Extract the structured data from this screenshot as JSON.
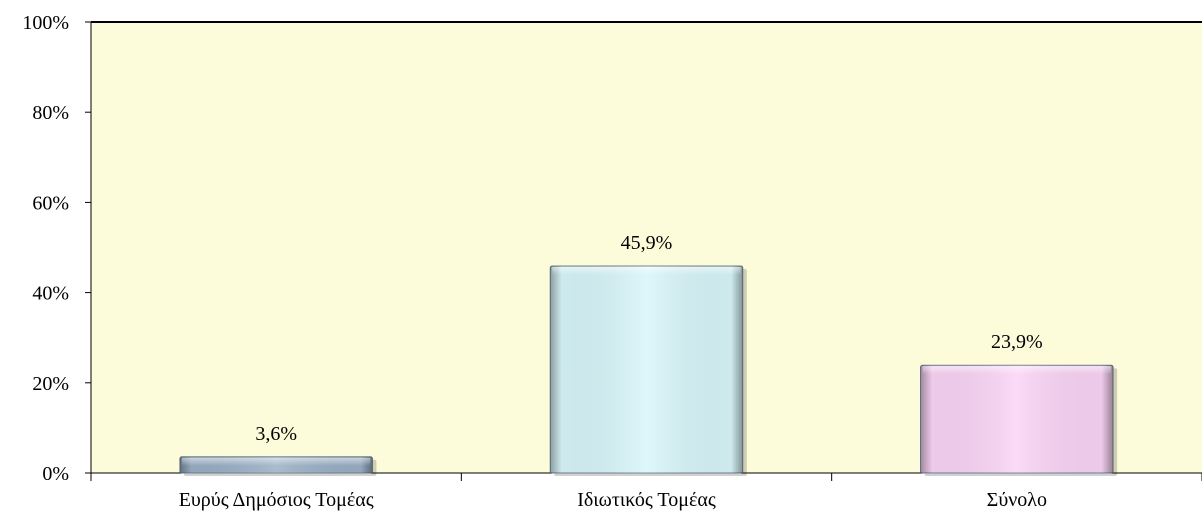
{
  "chart_data": {
    "type": "bar",
    "categories": [
      "Ευρύς Δημόσιος Τομέας",
      "Ιδιωτικός Τομέας",
      "Σύνολο"
    ],
    "values": [
      3.6,
      45.9,
      23.9
    ],
    "data_labels": [
      "3,6%",
      "45,9%",
      "23,9%"
    ],
    "ylim": [
      0,
      100
    ],
    "y_ticks": [
      0,
      20,
      40,
      60,
      80,
      100
    ],
    "y_tick_labels": [
      "0%",
      "20%",
      "40%",
      "60%",
      "80%",
      "100%"
    ],
    "grid": false,
    "plot_background": "#fcfcda",
    "bar_colors": [
      "#9ab0c6",
      "#d8f6fa",
      "#fad4f6"
    ]
  }
}
